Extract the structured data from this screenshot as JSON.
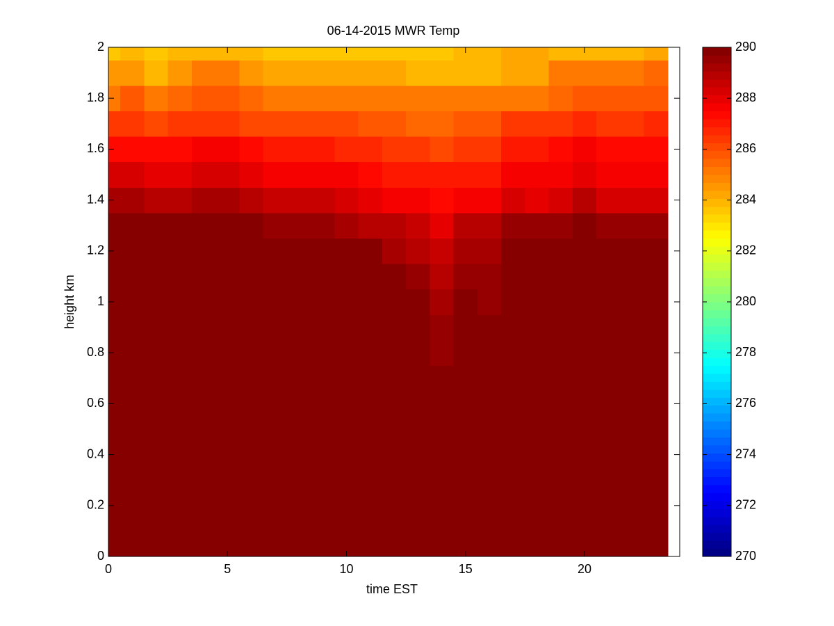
{
  "chart_data": {
    "type": "heatmap",
    "title": "06-14-2015 MWR Temp",
    "xlabel": "time EST",
    "ylabel": "height km",
    "colormap": "jet",
    "x": [
      0,
      1,
      2,
      3,
      4,
      5,
      6,
      7,
      8,
      9,
      10,
      11,
      12,
      13,
      14,
      15,
      16,
      17,
      18,
      19,
      20,
      21,
      22,
      23
    ],
    "y": [
      0,
      0.1,
      0.2,
      0.3,
      0.4,
      0.5,
      0.6,
      0.7,
      0.8,
      0.9,
      1,
      1.1,
      1.2,
      1.3,
      1.4,
      1.5,
      1.6,
      1.7,
      1.8,
      1.9,
      2
    ],
    "z": [
      [
        290,
        290,
        290,
        290,
        290,
        290,
        290,
        290,
        290,
        290,
        290,
        290,
        290,
        290,
        290,
        290,
        290,
        290,
        290,
        290,
        290,
        290,
        290,
        290
      ],
      [
        290,
        290,
        290,
        290,
        290,
        290,
        290,
        290,
        290,
        290,
        290,
        290,
        290,
        290,
        290,
        290,
        290,
        290,
        290,
        290,
        290,
        290,
        290,
        290
      ],
      [
        290,
        290,
        290,
        290,
        290,
        290,
        290,
        290,
        290,
        290,
        290,
        290,
        290,
        290,
        290,
        290,
        290,
        290,
        290,
        290,
        290,
        290,
        290,
        290
      ],
      [
        290,
        290,
        290,
        290,
        290,
        290,
        290,
        290,
        290,
        290,
        290,
        290,
        290,
        290,
        290,
        290,
        290,
        290,
        290,
        290,
        290,
        290,
        290,
        290
      ],
      [
        290,
        290,
        290,
        290,
        290,
        290,
        290,
        290,
        290,
        290,
        290,
        290,
        290,
        290,
        290,
        290,
        290,
        290,
        290,
        290,
        290,
        290,
        290,
        290
      ],
      [
        290,
        290,
        290,
        290,
        290,
        290,
        290,
        290,
        290,
        290,
        290,
        290,
        290,
        290,
        290,
        290,
        290,
        290,
        290,
        290,
        290,
        290,
        290,
        290
      ],
      [
        290,
        290,
        290,
        290,
        290,
        290,
        290,
        290,
        290,
        290,
        290,
        290,
        290,
        290,
        290,
        290,
        290,
        290,
        290,
        290,
        290,
        290,
        290,
        290
      ],
      [
        290,
        290,
        290,
        290,
        290,
        290,
        290,
        290,
        290,
        290,
        290,
        290,
        290,
        290,
        290,
        290,
        290,
        290,
        290,
        290,
        290,
        290,
        290,
        290
      ],
      [
        290,
        290,
        290,
        290,
        290,
        290,
        290,
        290,
        290,
        290,
        290,
        290,
        290,
        290,
        289.5,
        290,
        290,
        290,
        290,
        290,
        290,
        290,
        290,
        290
      ],
      [
        290,
        290,
        290,
        290,
        290,
        290,
        290,
        290,
        290,
        290,
        290,
        290,
        290,
        290,
        289.4,
        290,
        289.7,
        290,
        290,
        290,
        290,
        290,
        290,
        290
      ],
      [
        290,
        290,
        290,
        290,
        290,
        290,
        290,
        290,
        290,
        290,
        290,
        290,
        290,
        290,
        289.2,
        290,
        289.6,
        290,
        290,
        290,
        290,
        290,
        290,
        290
      ],
      [
        290,
        290,
        290,
        290,
        290,
        290,
        290,
        290,
        290,
        290,
        290,
        290,
        290,
        289.5,
        289,
        289.6,
        289.6,
        290,
        290,
        290,
        290,
        290,
        290,
        290
      ],
      [
        290,
        290,
        290,
        290,
        290,
        290,
        290,
        290,
        290,
        290,
        290,
        289.7,
        289.3,
        289,
        288.7,
        289.3,
        289.3,
        290,
        290,
        290,
        290,
        290,
        290,
        290
      ],
      [
        290,
        290,
        290,
        290,
        290,
        290,
        290,
        289.5,
        289.5,
        289.5,
        289.3,
        288.9,
        288.9,
        288.5,
        288.1,
        288.8,
        288.8,
        289.5,
        289.5,
        289.5,
        290,
        289.6,
        289.4,
        289.4
      ],
      [
        289.3,
        289.3,
        288.9,
        288.9,
        289.2,
        289.2,
        288.9,
        288.6,
        288.6,
        288.6,
        288.3,
        288.1,
        287.8,
        287.5,
        287.2,
        287.5,
        287.5,
        288.3,
        288,
        288.4,
        289,
        288.4,
        288.4,
        288.4
      ],
      [
        288.2,
        288.2,
        288,
        288,
        288.3,
        288.3,
        288.1,
        287.8,
        287.8,
        287.8,
        287.5,
        287.2,
        287,
        287,
        287,
        287,
        287,
        287.5,
        287.5,
        287.5,
        288,
        287.7,
        287.7,
        287.7
      ],
      [
        287.3,
        287.3,
        287.2,
        287.2,
        287.5,
        287.5,
        287.2,
        287,
        287,
        287,
        286.8,
        286.8,
        286.5,
        286.5,
        286.2,
        286.5,
        286.5,
        287,
        287,
        287.2,
        287.5,
        287.2,
        287.2,
        287.2
      ],
      [
        286.5,
        286.5,
        286.2,
        286.5,
        286.5,
        286.5,
        286.2,
        286.2,
        286.2,
        286.2,
        286.2,
        285.8,
        285.8,
        285.5,
        285.5,
        285.8,
        285.8,
        286.3,
        286.3,
        286.5,
        286.8,
        286.3,
        286.3,
        286.8
      ],
      [
        285,
        285.8,
        285.2,
        285.5,
        285.8,
        285.8,
        285.5,
        285.3,
        285.3,
        285.3,
        285,
        285,
        285,
        285,
        285,
        285,
        285,
        285.3,
        285.3,
        285.5,
        285.8,
        285.8,
        285.8,
        285.8
      ],
      [
        284.5,
        284.5,
        284,
        284.5,
        285,
        285,
        284.5,
        284.3,
        284.3,
        284.3,
        284.3,
        284.3,
        284.3,
        283.8,
        283.8,
        283.8,
        283.8,
        284.2,
        284.2,
        285,
        285,
        285,
        285,
        285.5
      ],
      [
        283.5,
        284,
        283.6,
        284,
        284,
        284,
        284,
        283.5,
        283.5,
        283.5,
        283.5,
        283.5,
        283.5,
        283.5,
        283.5,
        284,
        284,
        284.2,
        284.2,
        284,
        284,
        284,
        284,
        284.2
      ]
    ],
    "xlim": [
      0,
      24
    ],
    "ylim": [
      0,
      2
    ],
    "xticks": [
      0,
      5,
      10,
      15,
      20
    ],
    "yticks": [
      0,
      0.2,
      0.4,
      0.6,
      0.8,
      1,
      1.2,
      1.4,
      1.6,
      1.8,
      2
    ],
    "clim": [
      270,
      290
    ],
    "cticks": [
      270,
      272,
      274,
      276,
      278,
      280,
      282,
      284,
      286,
      288,
      290
    ]
  }
}
